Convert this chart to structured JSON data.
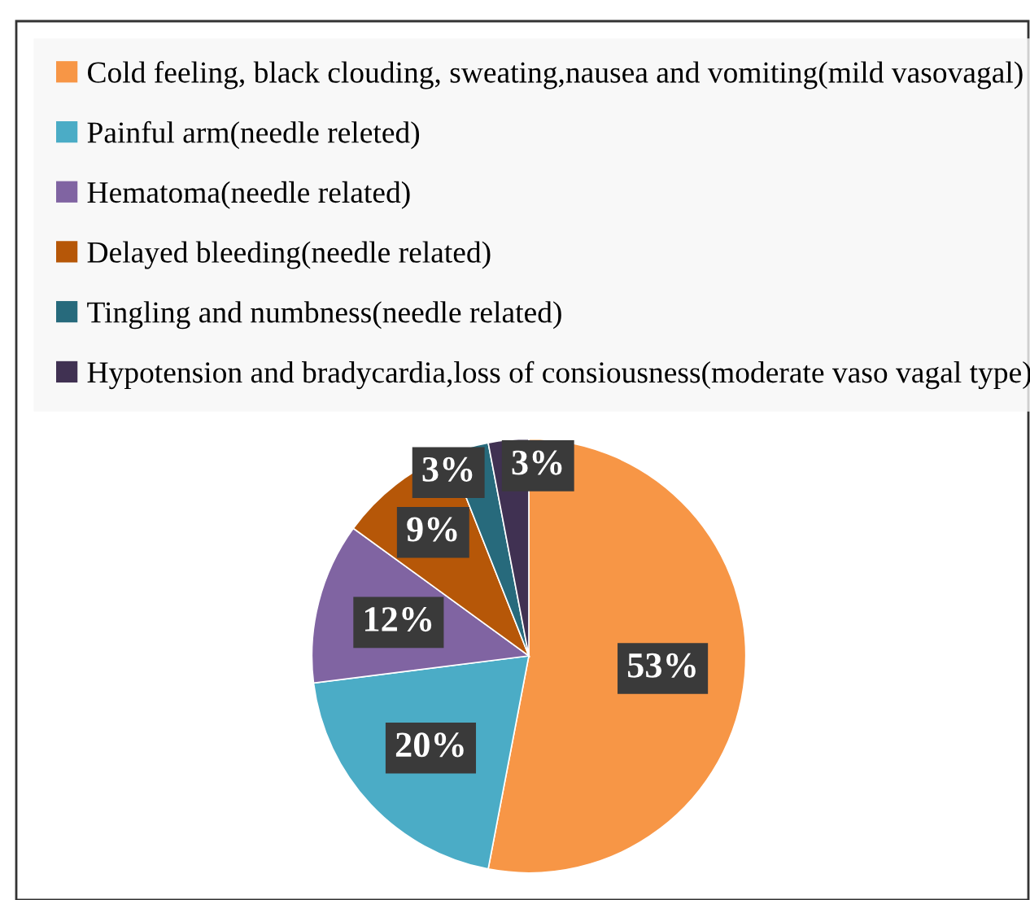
{
  "chart_data": {
    "type": "pie",
    "categories": [
      "Cold feeling, black clouding, sweating,nausea and vomiting(mild vasovagal)",
      "Painful arm(needle releted)",
      "Hematoma(needle related)",
      "Delayed bleeding(needle related)",
      "Tingling and numbness(needle related)",
      "Hypotension and bradycardia,loss of consiousness(moderate vaso vagal type)"
    ],
    "values": [
      53,
      20,
      12,
      9,
      3,
      3
    ],
    "value_labels": [
      "53%",
      "20%",
      "12%",
      "9%",
      "3%",
      "3%"
    ],
    "colors": [
      "#f79646",
      "#4bacc6",
      "#8064a2",
      "#b65708",
      "#276a7c",
      "#403152"
    ],
    "legend": "top"
  }
}
